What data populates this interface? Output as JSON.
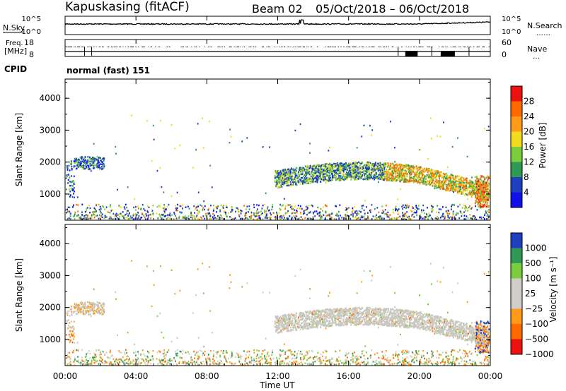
{
  "header": {
    "site": "Kapuskasing (fitACF)",
    "beam": "Beam 02",
    "date_range": "05/Oct/2018 – 06/Oct/2018"
  },
  "status_panel": {
    "nsky_label": "N.Sky",
    "nsky_ticks": [
      "10^5",
      "10^0"
    ],
    "nsearch_label": "N.Search",
    "freq_label_line1": "Freq.",
    "freq_label_line2": "[MHz]",
    "freq_ticks": [
      "18",
      "8"
    ],
    "nave_label": "Nave",
    "nave_ticks": [
      "60",
      "0"
    ],
    "cpid_label": "CPID",
    "cpid_value": "normal (fast) 151"
  },
  "chart_data": [
    {
      "type": "heatmap",
      "name": "power",
      "xlabel": "",
      "ylabel": "Slant Range [km]",
      "xlim": [
        "00:00",
        "24:00"
      ],
      "ylim": [
        180,
        4600
      ],
      "y_ticks": [
        "1000",
        "2000",
        "3000",
        "4000"
      ],
      "colorbar_label": "Power [dB]",
      "colorbar_ticks": [
        "28",
        "24",
        "20",
        "16",
        "12",
        "8",
        "4"
      ],
      "colorbar_colors": [
        "#ee1111",
        "#ff6a00",
        "#ff9a1a",
        "#f2dc1e",
        "#7acd3c",
        "#2f9a55",
        "#1f3fbf",
        "#1010e8"
      ]
    },
    {
      "type": "heatmap",
      "name": "velocity",
      "xlabel": "Time UT",
      "ylabel": "Slant Range [km]",
      "xlim": [
        "00:00",
        "24:00"
      ],
      "ylim": [
        180,
        4600
      ],
      "x_ticks": [
        "00:00",
        "04:00",
        "08:00",
        "12:00",
        "16:00",
        "20:00",
        "00:00"
      ],
      "y_ticks": [
        "1000",
        "2000",
        "3000",
        "4000"
      ],
      "colorbar_label": "Velocity [m s⁻¹]",
      "colorbar_ticks": [
        "1000",
        "500",
        "100",
        "25",
        "−25",
        "−100",
        "−500",
        "−1000"
      ],
      "colorbar_colors": [
        "#1f3fbf",
        "#2f9a55",
        "#7acd3c",
        "#cfcfc8",
        "#cfcfc8",
        "#ff9a1a",
        "#ff6a00",
        "#ee1111"
      ]
    }
  ],
  "colors": {
    "gs_gray": "#c8c8c0",
    "frame": "#000000"
  }
}
